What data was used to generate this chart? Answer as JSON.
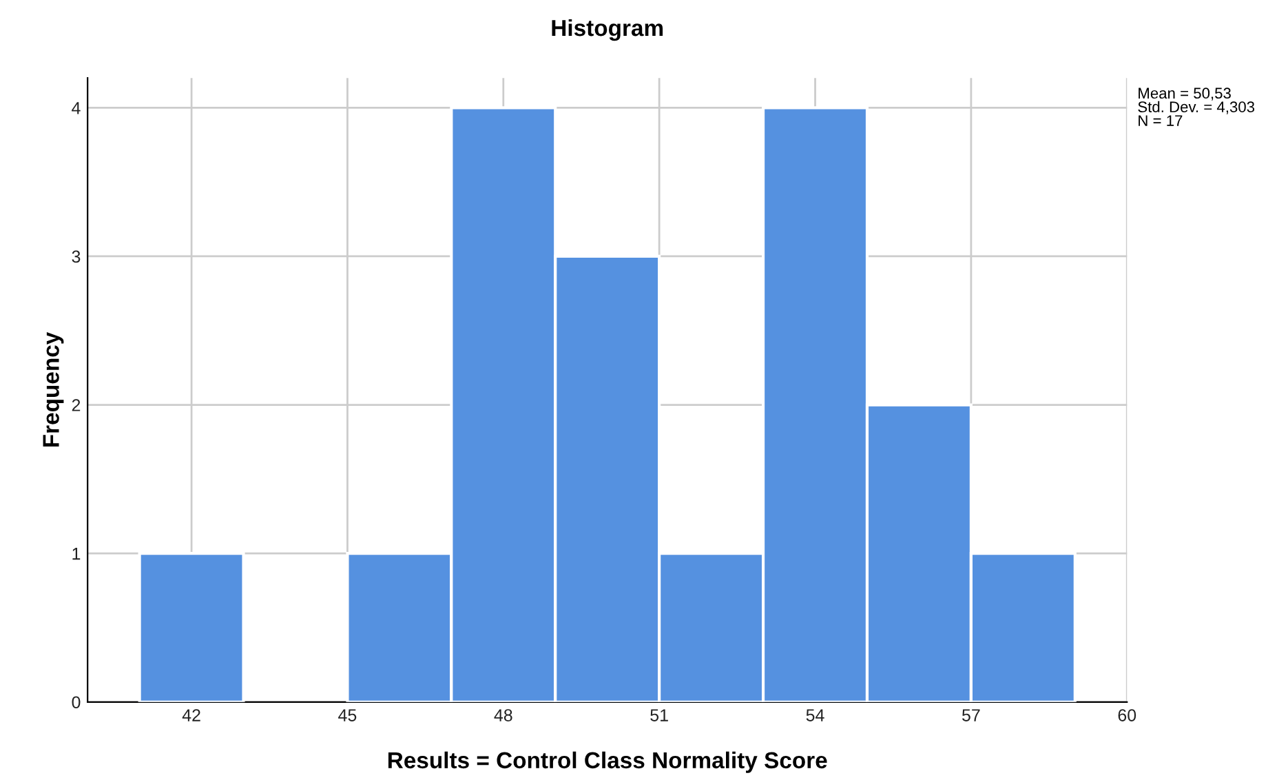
{
  "chart_data": {
    "type": "histogram",
    "title": "Histogram",
    "xlabel": "Results = Control Class Normality Score",
    "ylabel": "Frequency",
    "bins": [
      41,
      43,
      45,
      47,
      49,
      51,
      53,
      55,
      57,
      59
    ],
    "values": [
      1,
      0,
      1,
      4,
      3,
      1,
      4,
      2,
      1
    ],
    "color": "#5591e0",
    "xlim": [
      40,
      60
    ],
    "xticks": [
      42,
      45,
      48,
      51,
      54,
      57,
      60
    ],
    "ylim": [
      0,
      4.2
    ],
    "yticks": [
      0,
      1,
      2,
      3,
      4
    ],
    "grid": true,
    "annotations": [
      "Mean = 50,53\nStd. Dev. = 4,303\nN = 17"
    ]
  }
}
